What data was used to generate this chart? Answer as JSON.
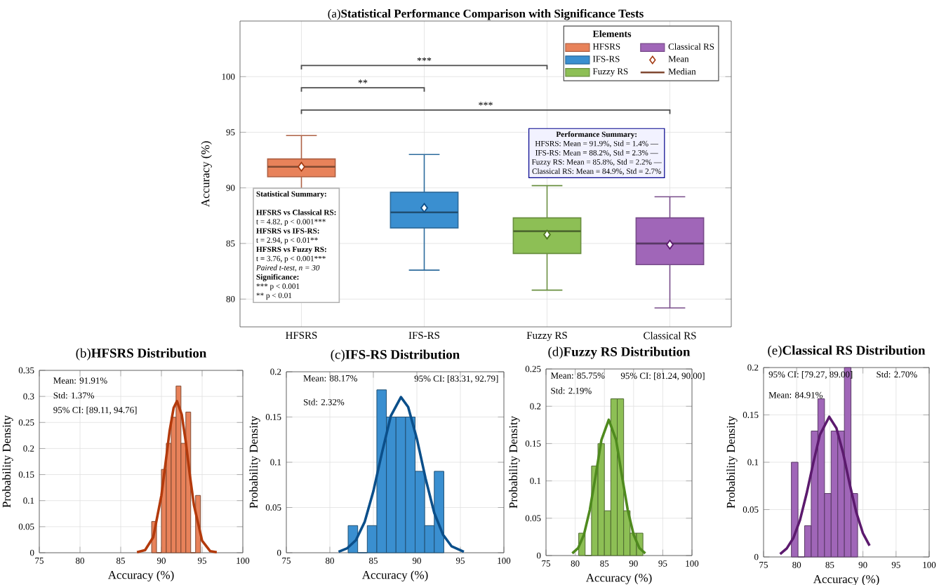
{
  "chart_data": [
    {
      "type": "box",
      "title": "(a)**Statistical Performance Comparison with Significance Tests**",
      "ylabel": "Accuracy (%)",
      "categories": [
        "HFSRS",
        "IFS-RS",
        "Fuzzy RS",
        "Classical RS"
      ],
      "series": [
        {
          "name": "HFSRS",
          "color": "#e8825a",
          "boxes": [
            {
              "low": 88.8,
              "q1": 91.0,
              "median": 91.9,
              "q3": 92.6,
              "high": 94.7
            },
            null,
            null,
            null
          ]
        },
        {
          "name": "IFS-RS",
          "color": "#3a8fd0",
          "boxes": [
            null,
            {
              "low": 82.6,
              "q1": 86.4,
              "median": 87.8,
              "q3": 89.6,
              "high": 93.0
            },
            null,
            null
          ]
        },
        {
          "name": "Fuzzy RS",
          "color": "#8dbf55",
          "boxes": [
            null,
            null,
            {
              "low": 80.8,
              "q1": 84.1,
              "median": 86.1,
              "q3": 87.3,
              "high": 90.2
            },
            null
          ]
        },
        {
          "name": "Classical RS",
          "color": "#a066b8",
          "boxes": [
            null,
            null,
            null,
            {
              "low": 79.2,
              "q1": 83.1,
              "median": 85.0,
              "q3": 87.3,
              "high": 89.2
            }
          ]
        },
        {
          "name": "Mean",
          "type": "scatter",
          "x": [
            "HFSRS",
            "IFS-RS",
            "Fuzzy RS",
            "Classical RS"
          ],
          "values": [
            91.9,
            88.2,
            85.8,
            84.9
          ],
          "colors": [
            "#a33a12",
            "#0d4f8a",
            "#4f7a1e",
            "#5c1a6e"
          ]
        }
      ],
      "ylim": [
        77.5,
        105
      ],
      "yticks": [
        80,
        85,
        90,
        95,
        100
      ],
      "grid": true,
      "marker": "diamond",
      "legend": "top right",
      "legend_title": "Elements",
      "annotations": [
        "***",
        "**",
        "***",
        "Performance Summary:",
        "HFSRS: Mean = 91.9%, Std = 1.4% —",
        "IFS-RS: Mean = 88.2%, Std = 2.3% —",
        "Fuzzy RS: Mean = 85.8%, Std = 2.2% —",
        "Classical RS: Mean = 84.9%, Std = 2.7%",
        "Statistical Summary:",
        "HFSRS vs Classical RS:",
        "t = 4.82, p < 0.001***",
        "HFSRS vs IFS-RS:",
        "t = 2.94, p < 0.01**",
        "HFSRS vs Fuzzy RS:",
        "t = 3.76, p < 0.001***",
        "Paired t-test, n = 30",
        "Significance:",
        "*** p < 0.001",
        "** p < 0.01",
        "Median"
      ]
    },
    {
      "type": "histogram",
      "title": "(b)**HFSRS Distribution**",
      "xlabel": "Accuracy (%)",
      "ylabel": "Probability Density",
      "color": "#e8825a",
      "bins": [
        88.8,
        89.4,
        90.0,
        90.6,
        91.2,
        91.8,
        92.4,
        93.0,
        93.6,
        94.2,
        94.8
      ],
      "values": [
        0.06,
        0,
        0.16,
        0.21,
        0.26,
        0.32,
        0.21,
        0.27,
        0,
        0.11
      ],
      "series": [
        {
          "type": "line",
          "color": "#b33a0c",
          "x": [
            87,
            88,
            89,
            90,
            90.5,
            91,
            91.5,
            91.91,
            92.5,
            93,
            93.5,
            94,
            95,
            96,
            96.8
          ],
          "values": [
            0.001,
            0.005,
            0.03,
            0.11,
            0.171,
            0.233,
            0.278,
            0.291,
            0.265,
            0.212,
            0.148,
            0.091,
            0.023,
            0.003,
            0.001
          ]
        }
      ],
      "xlim": [
        75,
        100
      ],
      "xticks": [
        75,
        80,
        85,
        90,
        95,
        100
      ],
      "ylim": [
        0,
        0.35
      ],
      "yticks": [
        0,
        0.05,
        0.1,
        0.15,
        0.2,
        0.25,
        0.3,
        0.35
      ],
      "grid": true,
      "annotations": [
        "Mean: 91.91%",
        "Std: 1.37%",
        "95% CI: [89.11, 94.76]"
      ]
    },
    {
      "type": "histogram",
      "title": "(c)**IFS-RS Distribution**",
      "xlabel": "Accuracy (%)",
      "ylabel": "Probability Density",
      "color": "#3a8fd0",
      "bins": [
        82.1,
        83.2,
        84.3,
        85.4,
        86.5,
        87.6,
        88.7,
        89.8,
        90.9,
        92.0,
        93.1
      ],
      "values": [
        0.03,
        0,
        0.03,
        0.18,
        0.15,
        0.15,
        0.15,
        0.09,
        0.03,
        0.09
      ],
      "series": [
        {
          "type": "line",
          "color": "#0b4f8a",
          "x": [
            81,
            82,
            83,
            84,
            85,
            86,
            87,
            88.17,
            89,
            90,
            91,
            92,
            93,
            94,
            95.4
          ],
          "values": [
            0.001,
            0.005,
            0.014,
            0.034,
            0.068,
            0.111,
            0.151,
            0.172,
            0.161,
            0.126,
            0.082,
            0.044,
            0.02,
            0.007,
            0.001
          ]
        }
      ],
      "xlim": [
        75,
        100
      ],
      "xticks": [
        75,
        80,
        85,
        90,
        95,
        100
      ],
      "ylim": [
        0,
        0.2
      ],
      "yticks": [
        0,
        0.05,
        0.1,
        0.15,
        0.2
      ],
      "grid": true,
      "annotations": [
        "Mean: 88.17%",
        "95% CI: [83.31, 92.79]",
        "Std: 2.32%"
      ]
    },
    {
      "type": "histogram",
      "title": "(d)**Fuzzy RS Distribution**",
      "xlabel": "Accuracy (%)",
      "ylabel": "Probability Density",
      "color": "#8dbf55",
      "bins": [
        80.6,
        81.7,
        82.8,
        83.9,
        85.0,
        86.1,
        87.2,
        88.3,
        89.4,
        90.5,
        91.6
      ],
      "values": [
        0.03,
        0,
        0.12,
        0.15,
        0.06,
        0.21,
        0.21,
        0.06,
        0.03,
        0.03
      ],
      "series": [
        {
          "type": "line",
          "color": "#4f8a1e",
          "x": [
            79.5,
            80.5,
            81.5,
            82.5,
            83.5,
            84.5,
            85.75,
            87,
            88,
            89,
            90,
            91,
            92
          ],
          "values": [
            0.003,
            0.01,
            0.028,
            0.061,
            0.107,
            0.155,
            0.182,
            0.155,
            0.107,
            0.061,
            0.028,
            0.01,
            0.003
          ]
        }
      ],
      "xlim": [
        75,
        100
      ],
      "xticks": [
        75,
        80,
        85,
        90,
        95,
        100
      ],
      "ylim": [
        0,
        0.25
      ],
      "yticks": [
        0,
        0.05,
        0.1,
        0.15,
        0.2,
        0.25
      ],
      "grid": true,
      "annotations": [
        "Mean: 85.75%",
        "95% CI: [81.24, 90.00]",
        "Std: 2.19%"
      ]
    },
    {
      "type": "histogram",
      "title": "(e)**Classical RS Distribution**",
      "xlabel": "Accuracy (%)",
      "ylabel": "Probability Density",
      "color": "#a066b8",
      "bins": [
        79.2,
        80.2,
        81.2,
        82.2,
        83.2,
        84.2,
        85.2,
        86.2,
        87.2,
        88.2,
        89.2
      ],
      "values": [
        0.1,
        0,
        0.033,
        0.133,
        0.167,
        0.067,
        0.133,
        0.133,
        0.2,
        0.067
      ],
      "series": [
        {
          "type": "line",
          "color": "#5c1a6e",
          "x": [
            77.5,
            78.5,
            79.5,
            80.5,
            81.5,
            82.5,
            83.5,
            84.91,
            86,
            87,
            88,
            89,
            90,
            91
          ],
          "values": [
            0.003,
            0.009,
            0.02,
            0.039,
            0.067,
            0.099,
            0.129,
            0.148,
            0.136,
            0.11,
            0.077,
            0.047,
            0.025,
            0.012
          ]
        }
      ],
      "xlim": [
        75,
        100
      ],
      "xticks": [
        75,
        80,
        85,
        90,
        95,
        100
      ],
      "ylim": [
        0,
        0.2
      ],
      "yticks": [
        0,
        0.05,
        0.1,
        0.15,
        0.2
      ],
      "grid": true,
      "annotations": [
        "95% CI: [79.27, 89.00]",
        "Std: 2.70%",
        "Mean: 84.91%"
      ]
    }
  ]
}
